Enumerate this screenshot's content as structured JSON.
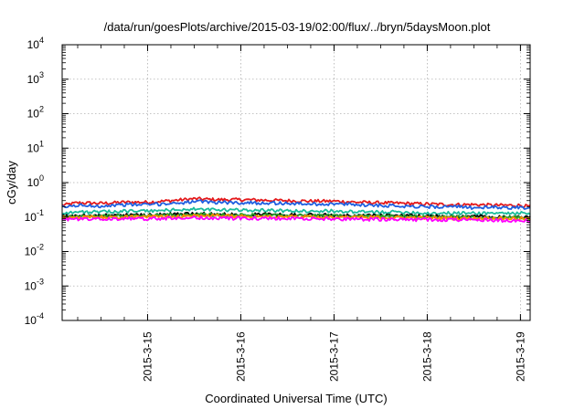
{
  "chart_data": {
    "type": "line",
    "title": "/data/run/goesPlots/archive/2015-03-19/02:00/flux/../bryn/5daysMoon.plot",
    "xlabel": "Coordinated Universal Time (UTC)",
    "ylabel": "cGy/day",
    "y_scale": "log",
    "ylim": [
      0.0001,
      10000
    ],
    "xlim": [
      "2015-03-14 02:00",
      "2015-03-19 02:30"
    ],
    "grid": true,
    "x_ticks": [
      "2015-3-15",
      "2015-3-16",
      "2015-3-17",
      "2015-3-18",
      "2015-3-19"
    ],
    "y_ticks": [
      {
        "base": "10",
        "exp": "-4",
        "value": 0.0001
      },
      {
        "base": "10",
        "exp": "-3",
        "value": 0.001
      },
      {
        "base": "10",
        "exp": "-2",
        "value": 0.01
      },
      {
        "base": "10",
        "exp": "-1",
        "value": 0.1
      },
      {
        "base": "10",
        "exp": "0",
        "value": 1
      },
      {
        "base": "10",
        "exp": "1",
        "value": 10
      },
      {
        "base": "10",
        "exp": "2",
        "value": 100
      },
      {
        "base": "10",
        "exp": "3",
        "value": 1000
      },
      {
        "base": "10",
        "exp": "4",
        "value": 10000
      }
    ],
    "x": [
      "2015-03-14 02:00",
      "2015-03-14 06:00",
      "2015-03-14 12:00",
      "2015-03-14 18:00",
      "2015-03-15 00:00",
      "2015-03-15 06:00",
      "2015-03-15 12:00",
      "2015-03-15 18:00",
      "2015-03-16 00:00",
      "2015-03-16 06:00",
      "2015-03-16 12:00",
      "2015-03-16 18:00",
      "2015-03-17 00:00",
      "2015-03-17 06:00",
      "2015-03-17 12:00",
      "2015-03-17 18:00",
      "2015-03-18 00:00",
      "2015-03-18 06:00",
      "2015-03-18 12:00",
      "2015-03-18 18:00",
      "2015-03-19 00:00",
      "2015-03-19 02:30"
    ],
    "series": [
      {
        "color": "#e41a1c",
        "values": [
          0.22,
          0.26,
          0.25,
          0.27,
          0.27,
          0.3,
          0.34,
          0.32,
          0.32,
          0.31,
          0.3,
          0.29,
          0.29,
          0.27,
          0.26,
          0.25,
          0.24,
          0.23,
          0.23,
          0.22,
          0.22,
          0.2
        ]
      },
      {
        "color": "#1f5fe0",
        "values": [
          0.19,
          0.22,
          0.21,
          0.23,
          0.23,
          0.25,
          0.28,
          0.27,
          0.26,
          0.26,
          0.25,
          0.24,
          0.24,
          0.23,
          0.22,
          0.21,
          0.2,
          0.2,
          0.19,
          0.19,
          0.19,
          0.17
        ]
      },
      {
        "color": "#1abc9c",
        "values": [
          0.13,
          0.14,
          0.14,
          0.15,
          0.15,
          0.16,
          0.17,
          0.16,
          0.16,
          0.16,
          0.15,
          0.15,
          0.15,
          0.14,
          0.14,
          0.14,
          0.13,
          0.13,
          0.13,
          0.13,
          0.13,
          0.12
        ]
      },
      {
        "color": "#000000",
        "values": [
          0.105,
          0.11,
          0.11,
          0.115,
          0.115,
          0.12,
          0.125,
          0.12,
          0.12,
          0.12,
          0.115,
          0.115,
          0.115,
          0.11,
          0.11,
          0.11,
          0.105,
          0.105,
          0.105,
          0.1,
          0.1,
          0.095
        ]
      },
      {
        "color": "#2ca02c",
        "values": [
          0.1,
          0.105,
          0.105,
          0.11,
          0.11,
          0.115,
          0.12,
          0.115,
          0.115,
          0.115,
          0.11,
          0.11,
          0.11,
          0.105,
          0.105,
          0.105,
          0.1,
          0.1,
          0.1,
          0.097,
          0.097,
          0.092
        ]
      },
      {
        "color": "#ff8c00",
        "values": [
          0.095,
          0.1,
          0.1,
          0.1,
          0.105,
          0.105,
          0.11,
          0.11,
          0.105,
          0.105,
          0.105,
          0.1,
          0.1,
          0.1,
          0.098,
          0.096,
          0.095,
          0.094,
          0.093,
          0.092,
          0.09,
          0.088
        ]
      },
      {
        "color": "#ff00ff",
        "values": [
          0.085,
          0.088,
          0.087,
          0.09,
          0.09,
          0.092,
          0.095,
          0.093,
          0.092,
          0.092,
          0.09,
          0.09,
          0.088,
          0.087,
          0.086,
          0.085,
          0.084,
          0.083,
          0.082,
          0.081,
          0.08,
          0.078
        ]
      }
    ]
  }
}
